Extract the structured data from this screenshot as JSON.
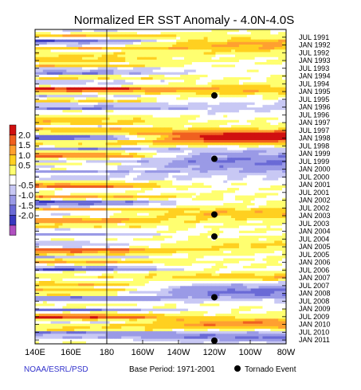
{
  "chart_data": {
    "type": "heatmap",
    "title": "Normalized ER SST Anomaly - 4.0N-4.0S",
    "x_ticks": [
      "140E",
      "160E",
      "180",
      "160W",
      "140W",
      "120W",
      "100W",
      "80W"
    ],
    "x_range": [
      "140E",
      "80W"
    ],
    "y_ticks": [
      "JUL 1991",
      "JAN 1992",
      "JUL 1992",
      "JAN 1993",
      "JUL 1993",
      "JAN 1994",
      "JUL 1994",
      "JAN 1995",
      "JUL 1995",
      "JAN 1996",
      "JUL 1996",
      "JAN 1997",
      "JUL 1997",
      "JAN 1998",
      "JUL 1998",
      "JAN 1999",
      "JUL 1999",
      "JAN 2000",
      "JUL 2000",
      "JAN 2001",
      "JUL 2001",
      "JAN 2002",
      "JUL 2002",
      "JAN 2003",
      "JUL 2003",
      "JAN 2004",
      "JUL 2004",
      "JAN 2005",
      "JUL 2005",
      "JAN 2006",
      "JUL 2006",
      "JAN 2007",
      "JUL 2007",
      "JAN 2008",
      "JUL 2008",
      "JAN 2009",
      "JUL 2009",
      "JAN 2010",
      "JUL 2010",
      "JAN 2011"
    ],
    "y_range": [
      "JAN 1991",
      "APR 2011"
    ],
    "colorbar": {
      "ticks": [
        "2.0",
        "1.5",
        "1.0",
        "0.5",
        "-0.5",
        "-1.0",
        "-1.5",
        "-2.0"
      ],
      "colors": [
        "#d01010",
        "#f06020",
        "#ffa030",
        "#ffd020",
        "#ffff70",
        "#ffffff",
        "#c8c8f4",
        "#9a9ae6",
        "#6a6ad6",
        "#3838c0",
        "#b050c0"
      ],
      "placement": "left"
    },
    "series": [
      {
        "name": "Tornado Event",
        "marker": "dot",
        "color": "#000000",
        "points": [
          {
            "x": "120W",
            "y": "APR 1995"
          },
          {
            "x": "120W",
            "y": "MAY 1999"
          },
          {
            "x": "120W",
            "y": "DEC 2002"
          },
          {
            "x": "120W",
            "y": "MAY 2004"
          },
          {
            "x": "120W",
            "y": "APR 2008"
          },
          {
            "x": "120W",
            "y": "APR 2011"
          }
        ]
      }
    ],
    "reference_line": {
      "x": "180",
      "style": "solid"
    },
    "grid": false
  },
  "footer": {
    "credit": "NOAA/ESRL/PSD",
    "base_period": "Base Period: 1971-2001",
    "legend_label": "Tornado Event"
  }
}
